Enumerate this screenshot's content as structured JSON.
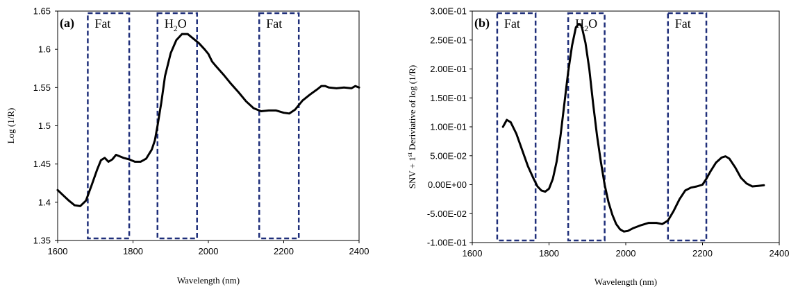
{
  "chart_data": [
    {
      "type": "line",
      "panel_label": "(a)",
      "xlabel": "Wavelength (nm)",
      "ylabel": "Log (1/R)",
      "xlim": [
        1600,
        2400
      ],
      "ylim": [
        1.35,
        1.65
      ],
      "x_ticks": [
        "1600",
        "1800",
        "2000",
        "2200",
        "2400"
      ],
      "y_ticks": [
        "1.35",
        "1.4",
        "1.45",
        "1.5",
        "1.55",
        "1.6",
        "1.65"
      ],
      "grid": false,
      "regions": [
        {
          "label": "Fat",
          "x": [
            1680,
            1790
          ]
        },
        {
          "label_main": "H",
          "label_sub": "2",
          "label_tail": "O",
          "x": [
            1865,
            1970
          ]
        },
        {
          "label": "Fat",
          "x": [
            2135,
            2240
          ]
        }
      ],
      "series": [
        {
          "x": [
            1600,
            1615,
            1630,
            1645,
            1660,
            1675,
            1690,
            1705,
            1715,
            1725,
            1735,
            1745,
            1755,
            1765,
            1775,
            1790,
            1805,
            1820,
            1835,
            1850,
            1858,
            1865,
            1875,
            1885,
            1900,
            1915,
            1930,
            1945,
            1960,
            1975,
            1990,
            2000,
            2010,
            2020,
            2040,
            2060,
            2080,
            2100,
            2120,
            2140,
            2160,
            2180,
            2200,
            2215,
            2230,
            2250,
            2270,
            2290,
            2300,
            2310,
            2320,
            2340,
            2360,
            2380,
            2390,
            2400
          ],
          "y": [
            1.416,
            1.409,
            1.402,
            1.396,
            1.395,
            1.402,
            1.422,
            1.443,
            1.455,
            1.458,
            1.453,
            1.456,
            1.462,
            1.46,
            1.458,
            1.456,
            1.453,
            1.453,
            1.457,
            1.469,
            1.481,
            1.5,
            1.53,
            1.565,
            1.595,
            1.612,
            1.62,
            1.62,
            1.614,
            1.608,
            1.6,
            1.594,
            1.584,
            1.578,
            1.567,
            1.555,
            1.544,
            1.532,
            1.523,
            1.519,
            1.52,
            1.52,
            1.517,
            1.516,
            1.521,
            1.533,
            1.541,
            1.548,
            1.552,
            1.552,
            1.55,
            1.549,
            1.55,
            1.549,
            1.552,
            1.55
          ]
        }
      ]
    },
    {
      "type": "line",
      "panel_label": "(b)",
      "xlabel": "Wavelength (nm)",
      "ylabel_main": "SNV + 1",
      "ylabel_sup": "st",
      "ylabel_tail": " Deriviative of log (1/R)",
      "xlim": [
        1600,
        2400
      ],
      "ylim": [
        -0.1,
        0.3
      ],
      "x_ticks": [
        "1600",
        "1800",
        "2000",
        "2200",
        "2400"
      ],
      "y_ticks": [
        "-1.00E-01",
        "-5.00E-02",
        "0.00E+00",
        "5.00E-02",
        "1.00E-01",
        "1.50E-01",
        "2.00E-01",
        "2.50E-01",
        "3.00E-01"
      ],
      "grid": false,
      "regions": [
        {
          "label": "Fat",
          "x": [
            1665,
            1765
          ]
        },
        {
          "label_main": "H",
          "label_sub": "2",
          "label_tail": "O",
          "x": [
            1850,
            1945
          ]
        },
        {
          "label": "Fat",
          "x": [
            2110,
            2210
          ]
        }
      ],
      "series": [
        {
          "x": [
            1680,
            1690,
            1700,
            1715,
            1730,
            1745,
            1760,
            1770,
            1780,
            1790,
            1800,
            1810,
            1820,
            1830,
            1840,
            1850,
            1860,
            1870,
            1878,
            1885,
            1895,
            1905,
            1915,
            1925,
            1935,
            1945,
            1955,
            1965,
            1975,
            1985,
            1995,
            2005,
            2020,
            2040,
            2060,
            2080,
            2095,
            2110,
            2125,
            2140,
            2155,
            2170,
            2185,
            2200,
            2210,
            2220,
            2235,
            2250,
            2260,
            2270,
            2285,
            2300,
            2315,
            2330,
            2345,
            2360
          ],
          "y": [
            0.1,
            0.112,
            0.108,
            0.088,
            0.06,
            0.032,
            0.01,
            -0.003,
            -0.01,
            -0.012,
            -0.007,
            0.01,
            0.04,
            0.085,
            0.14,
            0.195,
            0.24,
            0.272,
            0.278,
            0.274,
            0.245,
            0.2,
            0.14,
            0.085,
            0.04,
            0.0,
            -0.03,
            -0.052,
            -0.068,
            -0.077,
            -0.081,
            -0.08,
            -0.075,
            -0.07,
            -0.066,
            -0.066,
            -0.068,
            -0.062,
            -0.045,
            -0.025,
            -0.01,
            -0.005,
            -0.003,
            0.0,
            0.01,
            0.022,
            0.038,
            0.047,
            0.049,
            0.045,
            0.03,
            0.012,
            0.002,
            -0.003,
            -0.002,
            -0.001
          ]
        }
      ]
    }
  ]
}
